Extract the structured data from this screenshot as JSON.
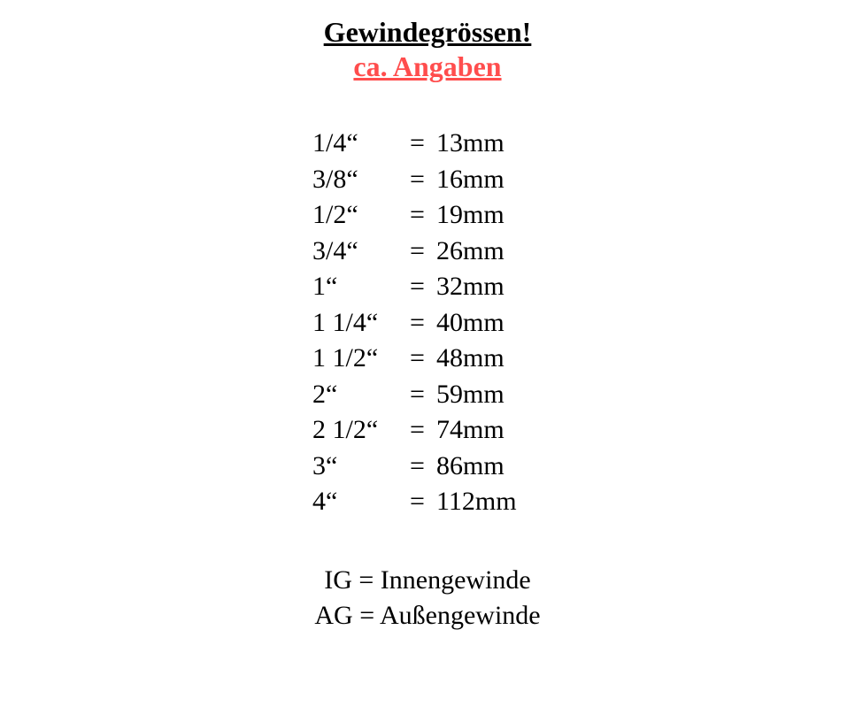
{
  "title": "Gewindegrössen!",
  "subtitle": "ca. Angaben",
  "title_color": "#000000",
  "subtitle_color": "#ff4d4d",
  "background_color": "#ffffff",
  "font_family": "Georgia, Times New Roman, serif",
  "title_fontsize": 32,
  "body_fontsize": 30,
  "rows": [
    {
      "inch": "1/4“",
      "mm": "13mm"
    },
    {
      "inch": "3/8“",
      "mm": "16mm"
    },
    {
      "inch": "1/2“",
      "mm": "19mm"
    },
    {
      "inch": "3/4“",
      "mm": "26mm"
    },
    {
      "inch": "1“",
      "mm": "32mm"
    },
    {
      "inch": "1 1/4“",
      "mm": "40mm"
    },
    {
      "inch": "1 1/2“",
      "mm": "48mm"
    },
    {
      "inch": "2“",
      "mm": "59mm"
    },
    {
      "inch": "2 1/2“",
      "mm": "74mm"
    },
    {
      "inch": "3“",
      "mm": "86mm"
    },
    {
      "inch": "4“",
      "mm": "112mm"
    }
  ],
  "equals": "=",
  "legend": [
    "IG = Innengewinde",
    "AG = Außengewinde"
  ]
}
